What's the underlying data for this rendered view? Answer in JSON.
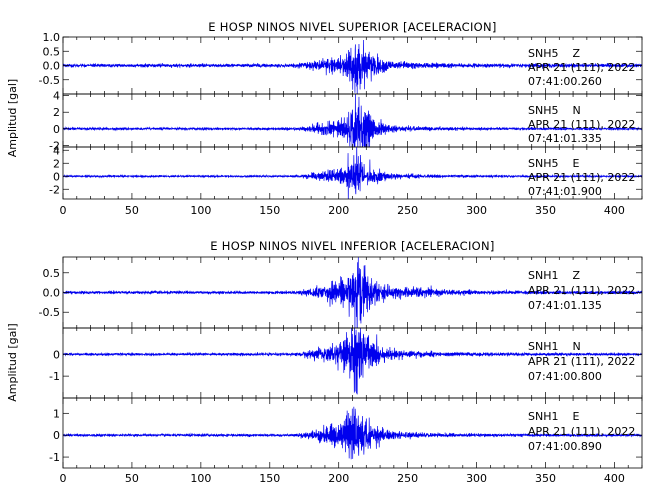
{
  "chart_data": [
    {
      "type": "line",
      "title": "E HOSP NINOS NIVEL SUPERIOR [ACELERACION]",
      "ylabel": "Amplitud [gal]",
      "xlabel": "",
      "xlim": [
        0,
        420
      ],
      "x_ticks": [
        0,
        50,
        100,
        150,
        200,
        250,
        300,
        350,
        400
      ],
      "line_color": "#0000ee",
      "grid": false,
      "traces": [
        {
          "station": "SNH5",
          "component": "Z",
          "date": "APR 21 (111), 2022",
          "time": "07:41:00.260",
          "ylim": [
            -1.0,
            1.0
          ],
          "y_ticks": [
            1.0,
            0.5,
            0.0,
            -0.5
          ],
          "y_tick_labels": [
            "1.0",
            "0.5",
            "0.0",
            "-0.5"
          ],
          "envelope": {
            "noise": 0.05,
            "onset": 163,
            "peak_time": 214,
            "peak_amp": 0.95,
            "tail_amp": 0.08
          }
        },
        {
          "station": "SNH5",
          "component": "N",
          "date": "APR 21 (111), 2022",
          "time": "07:41:01.335",
          "ylim": [
            -2.2,
            4.2
          ],
          "y_ticks": [
            4,
            2,
            0,
            -2
          ],
          "y_tick_labels": [
            "4",
            "2",
            "0",
            "-2"
          ],
          "envelope": {
            "noise": 0.12,
            "onset": 165,
            "peak_time": 215,
            "peak_amp": 3.2,
            "tail_amp": 0.2
          }
        },
        {
          "station": "SNH5",
          "component": "E",
          "date": "APR 21 (111), 2022",
          "time": "07:41:01.900",
          "ylim": [
            -3.5,
            4.5
          ],
          "y_ticks": [
            4,
            2,
            0,
            -2
          ],
          "y_tick_labels": [
            "4",
            "2",
            "0",
            "-2"
          ],
          "envelope": {
            "noise": 0.12,
            "onset": 165,
            "peak_time": 213,
            "peak_amp": 3.4,
            "tail_amp": 0.25
          }
        }
      ]
    },
    {
      "type": "line",
      "title": "E HOSP NINOS NIVEL INFERIOR [ACELERACION]",
      "ylabel": "Amplitud [gal]",
      "xlabel": "",
      "xlim": [
        0,
        420
      ],
      "x_ticks": [
        0,
        50,
        100,
        150,
        200,
        250,
        300,
        350,
        400
      ],
      "line_color": "#0000ee",
      "grid": false,
      "traces": [
        {
          "station": "SNH1",
          "component": "Z",
          "date": "APR 21 (111), 2022",
          "time": "07:41:01.135",
          "ylim": [
            -0.9,
            0.9
          ],
          "y_ticks": [
            0.5,
            0.0,
            -0.5
          ],
          "y_tick_labels": [
            "0.5",
            "0.0",
            "-0.5"
          ],
          "envelope": {
            "noise": 0.03,
            "onset": 163,
            "peak_time": 214,
            "peak_amp": 0.85,
            "tail_amp": 0.1
          }
        },
        {
          "station": "SNH1",
          "component": "N",
          "date": "APR 21 (111), 2022",
          "time": "07:41:00.800",
          "ylim": [
            -2.0,
            1.2
          ],
          "y_ticks": [
            0,
            -1
          ],
          "y_tick_labels": [
            "0",
            "-1"
          ],
          "envelope": {
            "noise": 0.05,
            "onset": 165,
            "peak_time": 213,
            "peak_amp": 1.5,
            "tail_amp": 0.12
          }
        },
        {
          "station": "SNH1",
          "component": "E",
          "date": "APR 21 (111), 2022",
          "time": "07:41:00.890",
          "ylim": [
            -1.5,
            1.7
          ],
          "y_ticks": [
            1,
            0,
            -1
          ],
          "y_tick_labels": [
            "1",
            "0",
            "-1"
          ],
          "envelope": {
            "noise": 0.05,
            "onset": 165,
            "peak_time": 212,
            "peak_amp": 1.45,
            "tail_amp": 0.1
          }
        }
      ]
    }
  ]
}
